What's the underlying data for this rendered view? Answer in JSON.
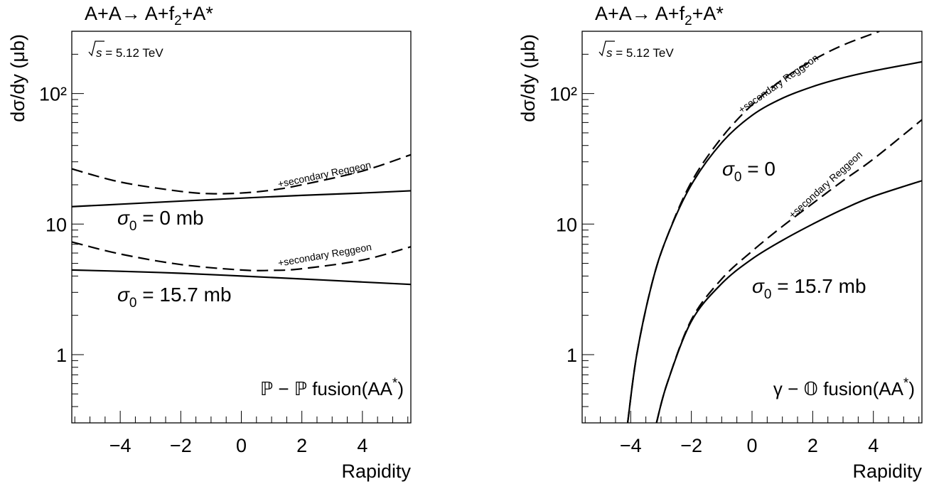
{
  "chart_data": [
    {
      "type": "line",
      "title": "A+A→ A+f2+A*",
      "title_parts": {
        "pre": "A+A→ A+f",
        "sub": "2",
        "post": "+A*"
      },
      "xlabel": "Rapidity",
      "ylabel": "dσ/dy (μb)",
      "xlim": [
        -5.6,
        5.6
      ],
      "ylim": [
        0.3,
        300
      ],
      "log_y": true,
      "x_ticks": [
        "−4",
        "−2",
        "0",
        "2",
        "4"
      ],
      "y_ticks": [
        "1",
        "10",
        "10²"
      ],
      "energy_label": "√s = 5.12 TeV",
      "energy_parts": {
        "root": "s",
        "rest": " = 5.12 TeV"
      },
      "fusion_label": "ℙ − ℙ fusion(AA*)",
      "fusion_parts": {
        "pre": "ℙ − ℙ fusion(AA",
        "sup": "*",
        "post": ")"
      },
      "curve_labels": [
        {
          "sigma": "σ",
          "sub": "0",
          "value": " = 0 mb"
        },
        {
          "sigma": "σ",
          "sub": "0",
          "value": " = 15.7 mb"
        }
      ],
      "secondary_label": "+secondary Reggeon",
      "series": [
        {
          "style": "solid",
          "x": [
            -5.6,
            -4,
            -2,
            0,
            2,
            4,
            5.6
          ],
          "y": [
            13.6,
            14.2,
            15.0,
            15.8,
            16.6,
            17.3,
            18.0
          ]
        },
        {
          "style": "dashed",
          "x": [
            -5.6,
            -4,
            -2,
            -1,
            0,
            1,
            2,
            4,
            5.6
          ],
          "y": [
            26.5,
            21.0,
            17.8,
            17.1,
            17.3,
            18.2,
            20.0,
            25.5,
            34.0
          ]
        },
        {
          "style": "solid",
          "x": [
            -5.6,
            -4,
            -2,
            0,
            2,
            4,
            5.6
          ],
          "y": [
            4.45,
            4.35,
            4.2,
            4.0,
            3.8,
            3.6,
            3.45
          ]
        },
        {
          "style": "dashed",
          "x": [
            -5.6,
            -4,
            -2,
            0,
            1,
            2,
            4,
            5.6
          ],
          "y": [
            7.3,
            5.9,
            4.9,
            4.45,
            4.42,
            4.55,
            5.3,
            6.7
          ]
        }
      ]
    },
    {
      "type": "line",
      "title": "A+A→ A+f2+A*",
      "title_parts": {
        "pre": "A+A→ A+f",
        "sub": "2",
        "post": "+A*"
      },
      "xlabel": "Rapidity",
      "ylabel": "dσ/dy (μb)",
      "xlim": [
        -5.6,
        5.6
      ],
      "ylim": [
        0.3,
        300
      ],
      "log_y": true,
      "x_ticks": [
        "−4",
        "−2",
        "0",
        "2",
        "4"
      ],
      "y_ticks": [
        "1",
        "10",
        "10²"
      ],
      "energy_label": "√s = 5.12 TeV",
      "energy_parts": {
        "root": "s",
        "rest": " = 5.12 TeV"
      },
      "fusion_label": "γ − 𝕆 fusion(AA*)",
      "fusion_parts": {
        "pre": "γ − 𝕆 fusion(AA",
        "sup": "*",
        "post": ")"
      },
      "curve_labels": [
        {
          "sigma": "σ",
          "sub": "0",
          "value": " = 0"
        },
        {
          "sigma": "σ",
          "sub": "0",
          "value": " = 15.7 mb"
        }
      ],
      "secondary_label": "+secondary Reggeon",
      "series": [
        {
          "style": "solid",
          "x": [
            -4.1,
            -3.8,
            -3.3,
            -2.8,
            -2,
            -1,
            0,
            1,
            2,
            3,
            4,
            5.6
          ],
          "y": [
            0.3,
            1.0,
            3.5,
            8,
            20,
            42,
            68,
            92,
            113,
            132,
            149,
            175
          ]
        },
        {
          "style": "dashed",
          "x": [
            -4.1,
            -3.8,
            -3.3,
            -2.8,
            -2,
            -1,
            0,
            1,
            2,
            3,
            4.2
          ],
          "y": [
            0.3,
            1.0,
            3.5,
            8,
            21,
            46,
            82,
            128,
            180,
            235,
            300
          ]
        },
        {
          "style": "solid",
          "x": [
            -3.15,
            -2.8,
            -2,
            -1,
            0,
            1,
            2,
            3,
            4,
            5.6
          ],
          "y": [
            0.3,
            0.6,
            1.8,
            3.5,
            5.4,
            7.5,
            10.0,
            13.0,
            16.3,
            21.5
          ]
        },
        {
          "style": "dashed",
          "x": [
            -3.15,
            -2.8,
            -2,
            -1,
            0,
            1,
            2,
            3,
            4,
            5.6
          ],
          "y": [
            0.3,
            0.6,
            1.85,
            3.8,
            6.2,
            9.6,
            14.4,
            21.5,
            31.5,
            63
          ]
        }
      ]
    }
  ]
}
